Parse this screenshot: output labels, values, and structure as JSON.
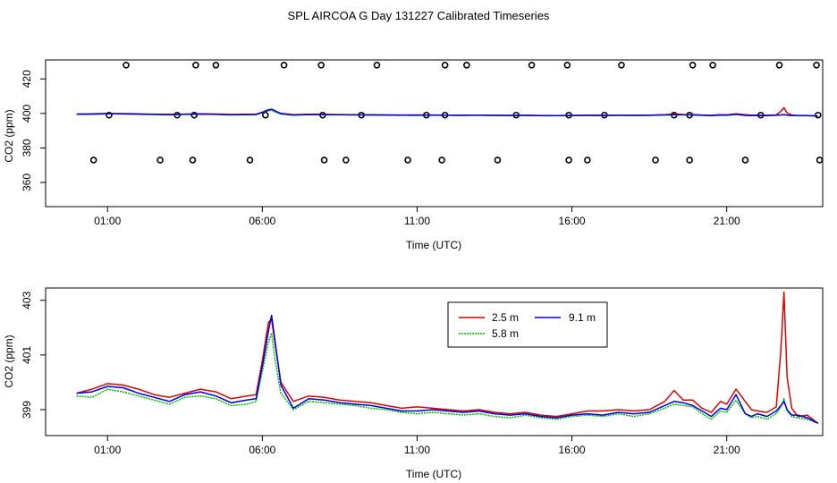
{
  "page_title": "SPL AIRCOA G  Day 131227  Calibrated Timeseries",
  "colors": {
    "s25": "#e00000",
    "s58": "#00c000",
    "s91": "#0000e0",
    "markers": "#000000"
  },
  "chart_data": [
    {
      "type": "scatter",
      "title": "",
      "xlabel": "Time (UTC)",
      "ylabel": "CO2 (ppm)",
      "xlim": [
        -1.0,
        24.1
      ],
      "ylim": [
        346,
        431
      ],
      "xticks": [
        1,
        6,
        11,
        16,
        21
      ],
      "xtick_labels": [
        "01:00",
        "06:00",
        "11:00",
        "16:00",
        "21:00"
      ],
      "yticks": [
        360,
        380,
        400,
        420
      ],
      "ytick_labels": [
        "360",
        "380",
        "400",
        "420"
      ],
      "grid": false,
      "points": [
        {
          "x": 0.55,
          "y": 373
        },
        {
          "x": 2.7,
          "y": 373
        },
        {
          "x": 3.75,
          "y": 373
        },
        {
          "x": 5.6,
          "y": 373
        },
        {
          "x": 8.0,
          "y": 373
        },
        {
          "x": 8.7,
          "y": 373
        },
        {
          "x": 10.7,
          "y": 373
        },
        {
          "x": 11.8,
          "y": 373
        },
        {
          "x": 13.6,
          "y": 373
        },
        {
          "x": 15.9,
          "y": 373
        },
        {
          "x": 16.5,
          "y": 373
        },
        {
          "x": 18.7,
          "y": 373
        },
        {
          "x": 19.8,
          "y": 373
        },
        {
          "x": 21.6,
          "y": 373
        },
        {
          "x": 24.0,
          "y": 373
        },
        {
          "x": 1.05,
          "y": 399
        },
        {
          "x": 3.25,
          "y": 399
        },
        {
          "x": 3.8,
          "y": 399
        },
        {
          "x": 6.1,
          "y": 399
        },
        {
          "x": 7.95,
          "y": 399
        },
        {
          "x": 9.2,
          "y": 399
        },
        {
          "x": 11.3,
          "y": 399
        },
        {
          "x": 11.9,
          "y": 399
        },
        {
          "x": 14.2,
          "y": 399
        },
        {
          "x": 15.9,
          "y": 399
        },
        {
          "x": 17.05,
          "y": 399
        },
        {
          "x": 19.3,
          "y": 399
        },
        {
          "x": 19.8,
          "y": 399
        },
        {
          "x": 22.1,
          "y": 399
        },
        {
          "x": 23.95,
          "y": 399
        },
        {
          "x": 1.6,
          "y": 428
        },
        {
          "x": 3.85,
          "y": 428
        },
        {
          "x": 4.5,
          "y": 428
        },
        {
          "x": 6.7,
          "y": 428
        },
        {
          "x": 7.9,
          "y": 428
        },
        {
          "x": 9.7,
          "y": 428
        },
        {
          "x": 11.9,
          "y": 428
        },
        {
          "x": 12.6,
          "y": 428
        },
        {
          "x": 14.7,
          "y": 428
        },
        {
          "x": 15.85,
          "y": 428
        },
        {
          "x": 17.6,
          "y": 428
        },
        {
          "x": 19.9,
          "y": 428
        },
        {
          "x": 20.55,
          "y": 428
        },
        {
          "x": 22.7,
          "y": 428
        },
        {
          "x": 23.9,
          "y": 428
        }
      ]
    },
    {
      "type": "line",
      "title": "",
      "xlabel": "Time (UTC)",
      "ylabel": "CO2 (ppm)",
      "xlim": [
        -1.0,
        24.1
      ],
      "ylim": [
        398.05,
        403.45
      ],
      "xticks": [
        1,
        6,
        11,
        16,
        21
      ],
      "xtick_labels": [
        "01:00",
        "06:00",
        "11:00",
        "16:00",
        "21:00"
      ],
      "yticks": [
        399,
        401,
        403
      ],
      "ytick_labels": [
        "399",
        "401",
        "403"
      ],
      "grid": false,
      "legend_position": "top-center",
      "series": [
        {
          "name": "2.5 m",
          "x": [
            0,
            0.5,
            1,
            1.5,
            2,
            2.5,
            3,
            3.5,
            4,
            4.5,
            5,
            5.5,
            5.8,
            6.0,
            6.2,
            6.3,
            6.4,
            6.6,
            7.0,
            7.5,
            8,
            8.5,
            9,
            9.5,
            10,
            10.5,
            11,
            11.5,
            12,
            12.5,
            13,
            13.5,
            14,
            14.5,
            15,
            15.5,
            16,
            16.5,
            17,
            17.5,
            18,
            18.5,
            19,
            19.3,
            19.6,
            19.9,
            20.2,
            20.5,
            20.8,
            21.0,
            21.3,
            21.6,
            21.8,
            22.0,
            22.3,
            22.6,
            22.75,
            22.85,
            22.95,
            23.1,
            23.3,
            23.6,
            23.95
          ],
          "values": [
            399.6,
            399.75,
            399.95,
            399.9,
            399.75,
            399.55,
            399.45,
            399.6,
            399.75,
            399.65,
            399.4,
            399.5,
            399.55,
            400.8,
            402.2,
            402.3,
            401.5,
            400.0,
            399.3,
            399.5,
            399.45,
            399.35,
            399.3,
            399.25,
            399.15,
            399.05,
            399.1,
            399.05,
            399.0,
            398.95,
            399.0,
            398.9,
            398.85,
            398.9,
            398.8,
            398.75,
            398.85,
            398.95,
            398.95,
            399.0,
            398.95,
            399.0,
            399.3,
            399.7,
            399.35,
            399.35,
            399.05,
            398.9,
            399.3,
            399.2,
            399.75,
            399.3,
            399.0,
            398.95,
            398.9,
            399.1,
            401.2,
            403.3,
            400.2,
            399.05,
            398.75,
            398.8,
            398.5
          ]
        },
        {
          "name": "5.8 m",
          "x": [
            0,
            0.5,
            1,
            1.5,
            2,
            2.5,
            3,
            3.5,
            4,
            4.5,
            5,
            5.5,
            5.8,
            6.0,
            6.2,
            6.3,
            6.4,
            6.6,
            7.0,
            7.5,
            8,
            8.5,
            9,
            9.5,
            10,
            10.5,
            11,
            11.5,
            12,
            12.5,
            13,
            13.5,
            14,
            14.5,
            15,
            15.5,
            16,
            16.5,
            17,
            17.5,
            18,
            18.5,
            19,
            19.3,
            19.6,
            19.9,
            20.2,
            20.5,
            20.8,
            21.0,
            21.3,
            21.6,
            21.8,
            22.0,
            22.3,
            22.6,
            22.75,
            22.85,
            22.95,
            23.1,
            23.3,
            23.6,
            23.95
          ],
          "values": [
            399.5,
            399.45,
            399.75,
            399.65,
            399.5,
            399.35,
            399.2,
            399.45,
            399.5,
            399.4,
            399.15,
            399.2,
            399.3,
            400.4,
            401.5,
            401.8,
            400.9,
            399.6,
            399.0,
            399.3,
            399.25,
            399.2,
            399.15,
            399.05,
            399.0,
            398.9,
            398.85,
            398.9,
            398.85,
            398.8,
            398.85,
            398.75,
            398.7,
            398.8,
            398.7,
            398.65,
            398.75,
            398.8,
            398.75,
            398.85,
            398.75,
            398.85,
            399.05,
            399.2,
            399.15,
            399.1,
            398.85,
            398.65,
            398.95,
            398.9,
            399.35,
            398.85,
            398.7,
            398.75,
            398.65,
            398.85,
            399.1,
            399.4,
            398.95,
            398.75,
            398.7,
            398.65,
            398.5
          ]
        },
        {
          "name": "9.1 m",
          "x": [
            0,
            0.5,
            1,
            1.5,
            2,
            2.5,
            3,
            3.5,
            4,
            4.5,
            5,
            5.5,
            5.8,
            6.0,
            6.2,
            6.3,
            6.4,
            6.6,
            7.0,
            7.5,
            8,
            8.5,
            9,
            9.5,
            10,
            10.5,
            11,
            11.5,
            12,
            12.5,
            13,
            13.5,
            14,
            14.5,
            15,
            15.5,
            16,
            16.5,
            17,
            17.5,
            18,
            18.5,
            19,
            19.3,
            19.6,
            19.9,
            20.2,
            20.5,
            20.8,
            21.0,
            21.3,
            21.6,
            21.8,
            22.0,
            22.3,
            22.6,
            22.75,
            22.85,
            22.95,
            23.1,
            23.3,
            23.6,
            23.95
          ],
          "values": [
            399.6,
            399.65,
            399.85,
            399.8,
            399.6,
            399.45,
            399.3,
            399.55,
            399.65,
            399.5,
            399.25,
            399.35,
            399.4,
            400.6,
            401.9,
            402.45,
            401.6,
            399.9,
            399.05,
            399.4,
            399.35,
            399.25,
            399.2,
            399.15,
            399.05,
            398.95,
            398.95,
            399.0,
            398.95,
            398.9,
            398.95,
            398.85,
            398.8,
            398.85,
            398.75,
            398.7,
            398.8,
            398.85,
            398.8,
            398.9,
            398.85,
            398.9,
            399.15,
            399.3,
            399.25,
            399.15,
            398.95,
            398.75,
            399.05,
            399.0,
            399.55,
            398.85,
            398.75,
            398.85,
            398.75,
            398.95,
            399.15,
            399.3,
            399.0,
            398.8,
            398.8,
            398.7,
            398.5
          ]
        }
      ]
    }
  ]
}
